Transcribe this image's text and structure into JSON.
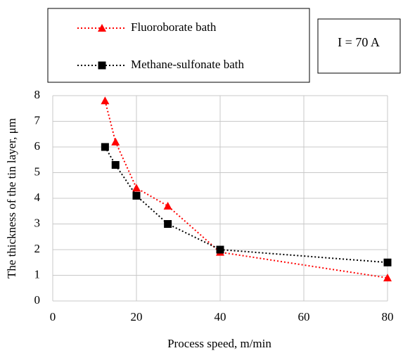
{
  "chart_data": {
    "type": "line",
    "x_label": "Process speed, m/min",
    "y_label": "The thickness of the tin layer, μm",
    "annotation": "I = 70 A",
    "xlim": [
      0,
      80
    ],
    "xticks": [
      0,
      20,
      40,
      60,
      80
    ],
    "ylim": [
      0,
      8
    ],
    "yticks": [
      0,
      1,
      2,
      3,
      4,
      5,
      6,
      7,
      8
    ],
    "grid": true,
    "series": [
      {
        "name": "Fluoroborate bath",
        "color": "#ff0000",
        "marker": "triangle",
        "x": [
          12.5,
          15,
          20,
          27.5,
          40,
          80
        ],
        "values": [
          7.8,
          6.2,
          4.4,
          3.7,
          1.9,
          0.9
        ]
      },
      {
        "name": "Methane-sulfonate bath",
        "color": "#000000",
        "marker": "square",
        "x": [
          12.5,
          15,
          20,
          27.5,
          40,
          80
        ],
        "values": [
          6.0,
          5.3,
          4.1,
          3.0,
          2.0,
          1.5
        ]
      }
    ]
  }
}
